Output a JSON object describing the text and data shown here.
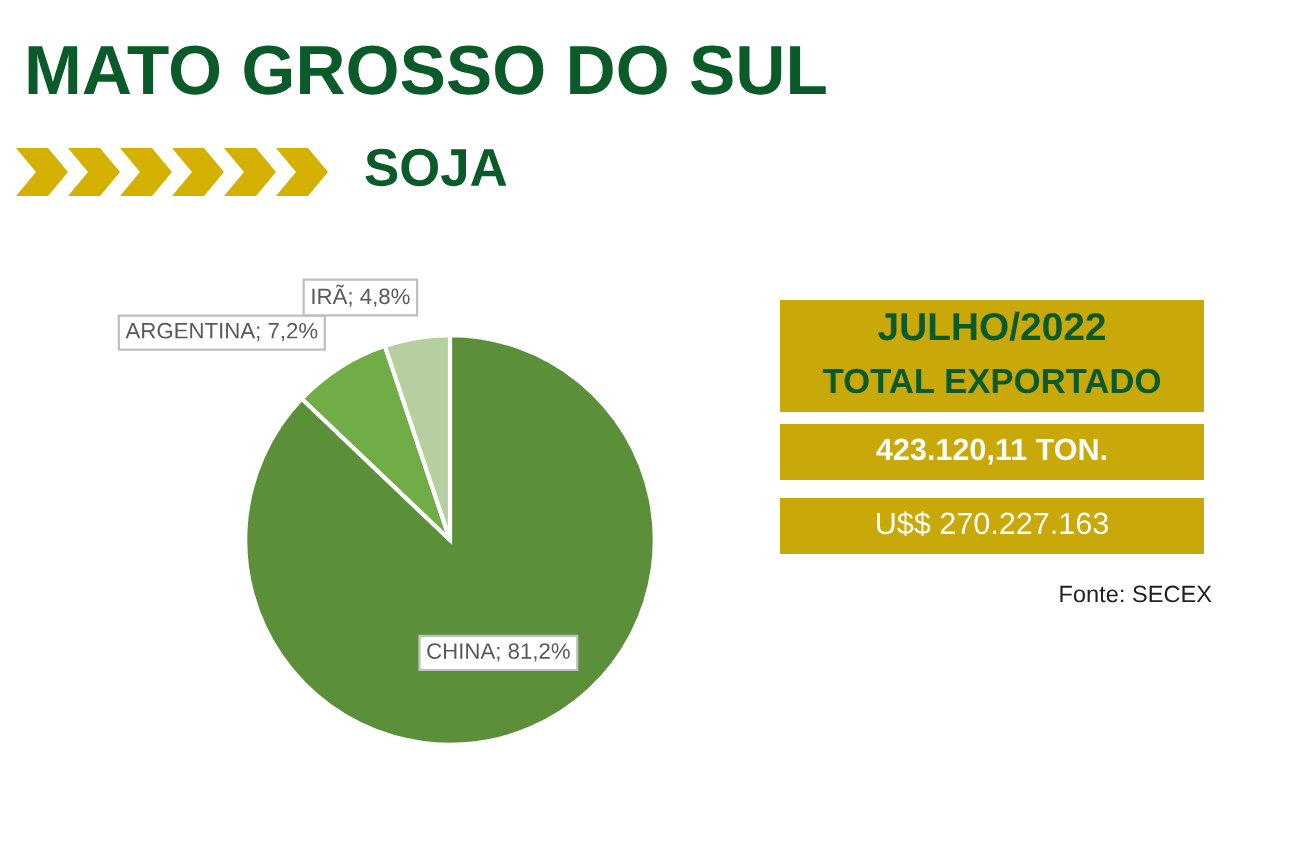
{
  "chart_data": {
    "type": "pie",
    "title": "MATO GROSSO DO SUL",
    "subtitle": "SOJA",
    "categories": [
      "CHINA",
      "ARGENTINA",
      "IRÃ"
    ],
    "values": [
      81.2,
      7.2,
      4.8
    ],
    "value_labels": [
      "81,2%",
      "7,2%",
      "4,8%"
    ],
    "colors": [
      "#5b8f3a",
      "#70ad47",
      "#b5cfa0"
    ],
    "annotations": [
      "JULHO/2022",
      "TOTAL EXPORTADO",
      "423.120,11 TON.",
      "U$$ 270.227.163",
      "Fonte: SECEX"
    ],
    "legend": false
  }
}
